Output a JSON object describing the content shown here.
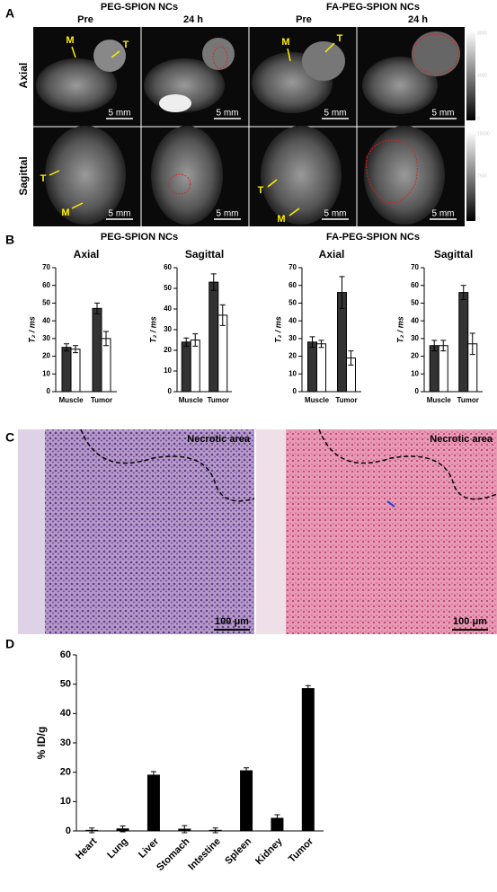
{
  "panel_labels": [
    "A",
    "B",
    "C",
    "D"
  ],
  "mri": {
    "groups": [
      "PEG-SPION NCs",
      "FA-PEG-SPION NCs"
    ],
    "timepoints": [
      "Pre",
      "24 h",
      "Pre",
      "24 h"
    ],
    "views": [
      "Axial",
      "Sagittal"
    ],
    "markers": {
      "muscle": "M",
      "tumor": "T"
    },
    "scale_bar": "5 mm",
    "colorbar_labels": [
      [
        "8000",
        "4000",
        "0"
      ],
      [
        "15000",
        "7500",
        "0"
      ]
    ]
  },
  "t2_groups": [
    "PEG-SPION NCs",
    "FA-PEG-SPION NCs"
  ],
  "histology": {
    "annotation": "Necrotic area",
    "scale_bar": "100 μm"
  },
  "chart_data": [
    {
      "type": "bar",
      "title": "Axial",
      "y_label": "T₂ / ms",
      "categories": [
        "Muscle",
        "Tumor"
      ],
      "series": [
        {
          "color": "#333333",
          "values": [
            25,
            47
          ],
          "errors": [
            2,
            3
          ]
        },
        {
          "color": "#ffffff",
          "values": [
            24,
            30
          ],
          "errors": [
            2,
            4
          ]
        }
      ],
      "ylim": [
        0,
        70
      ],
      "yticks": [
        0,
        10,
        20,
        30,
        40,
        50,
        60,
        70
      ]
    },
    {
      "type": "bar",
      "title": "Sagittal",
      "y_label": "T₂ / ms",
      "categories": [
        "Muscle",
        "Tumor"
      ],
      "series": [
        {
          "color": "#333333",
          "values": [
            24,
            53
          ],
          "errors": [
            2,
            4
          ]
        },
        {
          "color": "#ffffff",
          "values": [
            25,
            37
          ],
          "errors": [
            3,
            5
          ]
        }
      ],
      "ylim": [
        0,
        60
      ],
      "yticks": [
        0,
        10,
        20,
        30,
        40,
        50,
        60
      ]
    },
    {
      "type": "bar",
      "title": "Axial",
      "y_label": "T₂ / ms",
      "categories": [
        "Muscle",
        "Tumor"
      ],
      "series": [
        {
          "color": "#333333",
          "values": [
            28,
            56
          ],
          "errors": [
            3,
            9
          ]
        },
        {
          "color": "#ffffff",
          "values": [
            27,
            19
          ],
          "errors": [
            2,
            4
          ]
        }
      ],
      "ylim": [
        0,
        70
      ],
      "yticks": [
        0,
        10,
        20,
        30,
        40,
        50,
        60,
        70
      ]
    },
    {
      "type": "bar",
      "title": "Sagittal",
      "y_label": "T₂ / ms",
      "categories": [
        "Muscle",
        "Tumor"
      ],
      "series": [
        {
          "color": "#333333",
          "values": [
            26,
            56
          ],
          "errors": [
            3,
            4
          ]
        },
        {
          "color": "#ffffff",
          "values": [
            26,
            27
          ],
          "errors": [
            3,
            6
          ]
        }
      ],
      "ylim": [
        0,
        70
      ],
      "yticks": [
        0,
        10,
        20,
        30,
        40,
        50,
        60,
        70
      ]
    },
    {
      "type": "bar",
      "y_label": "% ID/g",
      "categories": [
        "Heart",
        "Lung",
        "Liver",
        "Stomach",
        "Intestine",
        "Spleen",
        "Kidney",
        "Tumor"
      ],
      "values": [
        0.2,
        0.7,
        19,
        0.6,
        0.2,
        20.5,
        4.3,
        48.5
      ],
      "errors": [
        0.8,
        1,
        1.2,
        1.2,
        0.8,
        1,
        1.2,
        1
      ],
      "color": "#000000",
      "ylim": [
        0,
        60
      ],
      "yticks": [
        0,
        10,
        20,
        30,
        40,
        50,
        60
      ]
    }
  ]
}
